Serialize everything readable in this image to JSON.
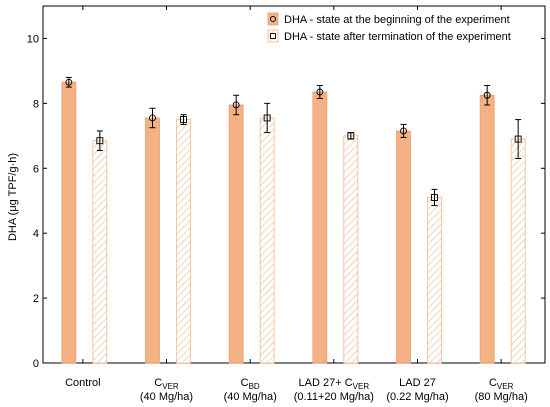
{
  "chart_data": {
    "type": "bar",
    "ylabel": "DHA (μg TPF/g·h)",
    "ylim": [
      0,
      11
    ],
    "yticks": [
      0,
      2,
      4,
      6,
      8,
      10
    ],
    "grid": false,
    "legend_position": "top-right",
    "categories": [
      {
        "main": "Control",
        "sub": "",
        "line2": ""
      },
      {
        "main": "C",
        "sub": "VER",
        "line2": "(40 Mg/ha)"
      },
      {
        "main": "C",
        "sub": "BD",
        "line2": "(40 Mg/ha)"
      },
      {
        "main": "LAD 27+ C",
        "sub": "VER",
        "line2": "(0.11+20 Mg/ha)"
      },
      {
        "main": "LAD 27",
        "sub": "",
        "line2": "(0.22 Mg/ha)"
      },
      {
        "main": "C",
        "sub": "VER",
        "line2": "(80 Mg/ha)"
      }
    ],
    "series": [
      {
        "name": "DHA - state at the beginning of the experiment",
        "values": [
          8.65,
          7.55,
          7.95,
          8.35,
          7.15,
          8.25
        ],
        "errors": [
          0.15,
          0.3,
          0.3,
          0.2,
          0.2,
          0.3
        ],
        "marker": "circle",
        "fill": "#f4b183",
        "stroke": "#e8a070"
      },
      {
        "name": "DHA - state after termination of the experiment",
        "values": [
          6.85,
          7.5,
          7.55,
          7.0,
          5.1,
          6.9
        ],
        "errors": [
          0.3,
          0.15,
          0.45,
          0.1,
          0.25,
          0.6
        ],
        "marker": "square",
        "fill": "hatched",
        "stroke": "#f0b890"
      }
    ]
  }
}
